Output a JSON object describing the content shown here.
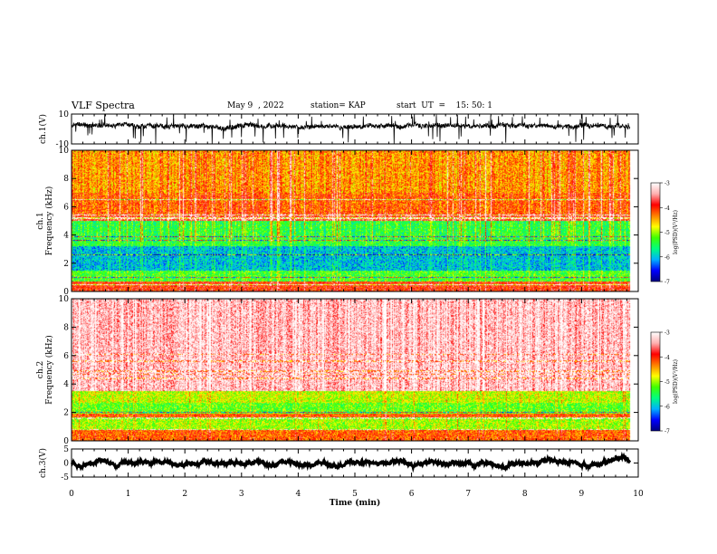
{
  "header": {
    "title": "VLF Spectra",
    "date": "May 9  , 2022",
    "station": "station= KAP",
    "start": "start  UT  =    15: 50: 1"
  },
  "colorbar": {
    "ticks": [
      "-3",
      "-4",
      "-5",
      "-6",
      "-7"
    ],
    "label": "log(PSD)(V²/Hz)",
    "colors": [
      "#000080",
      "#0000ff",
      "#00b0ff",
      "#00ff80",
      "#40ff00",
      "#ffff00",
      "#ff8000",
      "#ff0000",
      "#ffb0b0",
      "#ffffff"
    ]
  },
  "chart_data": [
    {
      "type": "line",
      "ylabel": "ch.1(V)",
      "ylim": [
        -10,
        10
      ],
      "yticks": [
        "10",
        "-10"
      ],
      "x_range": [
        0,
        9.85
      ],
      "series": [
        {
          "baseline": 2,
          "amplitude": 3
        }
      ]
    },
    {
      "type": "heatmap",
      "ylabel": "ch.1\nFrequency (kHz)",
      "ylim": [
        0,
        10
      ],
      "yticks": [
        "0",
        "2",
        "4",
        "6",
        "8",
        "10"
      ],
      "zlim": [
        -7,
        -3
      ],
      "bands": [
        {
          "from": 0.0,
          "to": 0.7,
          "level": -4.0
        },
        {
          "from": 0.7,
          "to": 1.5,
          "level": -5.3
        },
        {
          "from": 1.5,
          "to": 3.2,
          "level": -6.0
        },
        {
          "from": 3.2,
          "to": 5.0,
          "level": -5.4
        },
        {
          "from": 5.0,
          "to": 5.5,
          "level": -3.8
        },
        {
          "from": 5.5,
          "to": 7.0,
          "level": -4.2
        },
        {
          "from": 7.0,
          "to": 10.0,
          "level": -4.4
        }
      ],
      "lines_khz": [
        0.5,
        1.0,
        2.6,
        3.6,
        3.9,
        5.2,
        5.4,
        6.5
      ]
    },
    {
      "type": "heatmap",
      "ylabel": "ch.2\nFrequency (kHz)",
      "ylim": [
        0,
        10
      ],
      "yticks": [
        "0",
        "2",
        "4",
        "6",
        "8",
        "10"
      ],
      "zlim": [
        -7,
        -3
      ],
      "bands": [
        {
          "from": 0.0,
          "to": 0.8,
          "level": -4.2
        },
        {
          "from": 0.8,
          "to": 1.5,
          "level": -5.0
        },
        {
          "from": 1.5,
          "to": 1.9,
          "level": -4.2
        },
        {
          "from": 1.9,
          "to": 2.7,
          "level": -5.2
        },
        {
          "from": 2.7,
          "to": 3.5,
          "level": -4.9
        },
        {
          "from": 3.5,
          "to": 10.0,
          "level": -3.3
        }
      ],
      "lines_khz": [
        0.8,
        1.6,
        2.0,
        4.4,
        4.7,
        4.9,
        5.6,
        6.1
      ]
    },
    {
      "type": "line",
      "ylabel": "ch.3(V)",
      "ylim": [
        -5,
        5
      ],
      "yticks": [
        "5",
        "0",
        "-5"
      ],
      "x_range": [
        0,
        9.85
      ],
      "series": [
        {
          "baseline": 0,
          "amplitude": 0.35
        }
      ]
    }
  ],
  "xaxis": {
    "label": "Time (min)",
    "range": [
      0,
      10
    ],
    "ticks": [
      "0",
      "1",
      "2",
      "3",
      "4",
      "5",
      "6",
      "7",
      "8",
      "9",
      "10"
    ]
  }
}
